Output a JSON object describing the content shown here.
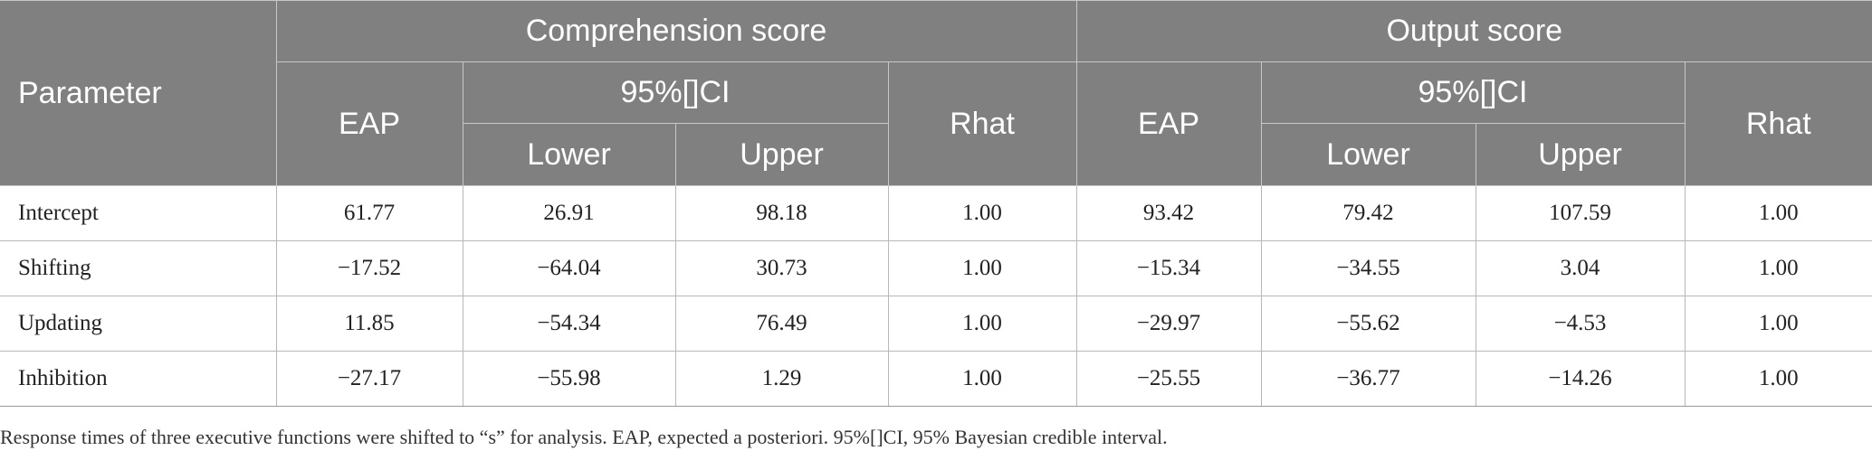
{
  "header": {
    "parameter": "Parameter",
    "group1": "Comprehension score",
    "group2": "Output score",
    "eap": "EAP",
    "ci": "95%[]CI",
    "rhat": "Rhat",
    "lower": "Lower",
    "upper": "Upper"
  },
  "rows": [
    {
      "label": "Intercept",
      "c_eap": "61.77",
      "c_lower": "26.91",
      "c_upper": "98.18",
      "c_rhat": "1.00",
      "o_eap": "93.42",
      "o_lower": "79.42",
      "o_upper": "107.59",
      "o_rhat": "1.00"
    },
    {
      "label": "Shifting",
      "c_eap": "−17.52",
      "c_lower": "−64.04",
      "c_upper": "30.73",
      "c_rhat": "1.00",
      "o_eap": "−15.34",
      "o_lower": "−34.55",
      "o_upper": "3.04",
      "o_rhat": "1.00"
    },
    {
      "label": "Updating",
      "c_eap": "11.85",
      "c_lower": "−54.34",
      "c_upper": "76.49",
      "c_rhat": "1.00",
      "o_eap": "−29.97",
      "o_lower": "−55.62",
      "o_upper": "−4.53",
      "o_rhat": "1.00"
    },
    {
      "label": "Inhibition",
      "c_eap": "−27.17",
      "c_lower": "−55.98",
      "c_upper": "1.29",
      "c_rhat": "1.00",
      "o_eap": "−25.55",
      "o_lower": "−36.77",
      "o_upper": "−14.26",
      "o_rhat": "1.00"
    }
  ],
  "footnote": "Response times of three executive functions were shifted to “s” for analysis. EAP, expected a posteriori. 95%[]CI, 95% Bayesian credible interval.",
  "colors": {
    "header_bg": "#808080",
    "header_text": "#ffffff",
    "grid": "#b8b8b8"
  }
}
